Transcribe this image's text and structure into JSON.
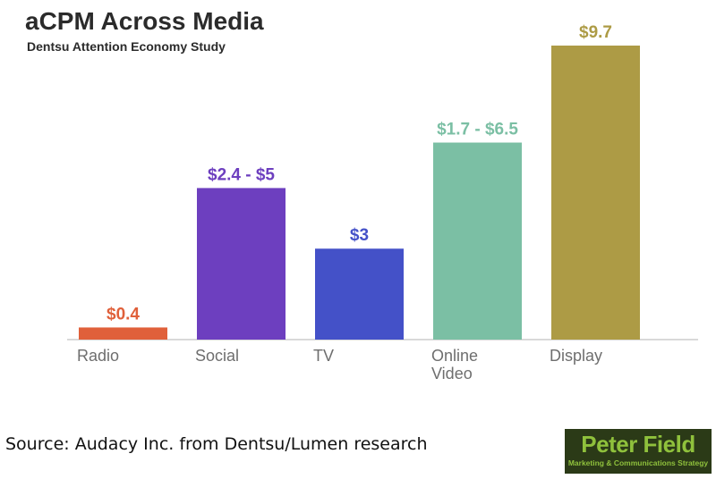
{
  "title": "aCPM Across Media",
  "subtitle": "Dentsu Attention Economy Study",
  "source": "Source: Audacy Inc. from Dentsu/Lumen research",
  "logo": {
    "name": "Peter Field",
    "tagline": "Marketing & Communications Strategy"
  },
  "colors": {
    "axis": "#d9d9d9",
    "category_text": "#6e6e6e"
  },
  "chart_data": {
    "type": "bar",
    "title": "aCPM Across Media",
    "subtitle": "Dentsu Attention Economy Study",
    "categories": [
      "Radio",
      "Social",
      "TV",
      "Online Video",
      "Display"
    ],
    "values": [
      0.4,
      5,
      3,
      6.5,
      9.7
    ],
    "data_labels": [
      "$0.4",
      "$2.4 - $5",
      "$3",
      "$1.7 - $6.5",
      "$9.7"
    ],
    "colors": [
      "#e0603a",
      "#6d3fbf",
      "#4451c8",
      "#7bbfa4",
      "#ad9b45"
    ],
    "ylim": [
      0,
      9.7
    ],
    "xlabel": "",
    "ylabel": "",
    "grid": false
  }
}
